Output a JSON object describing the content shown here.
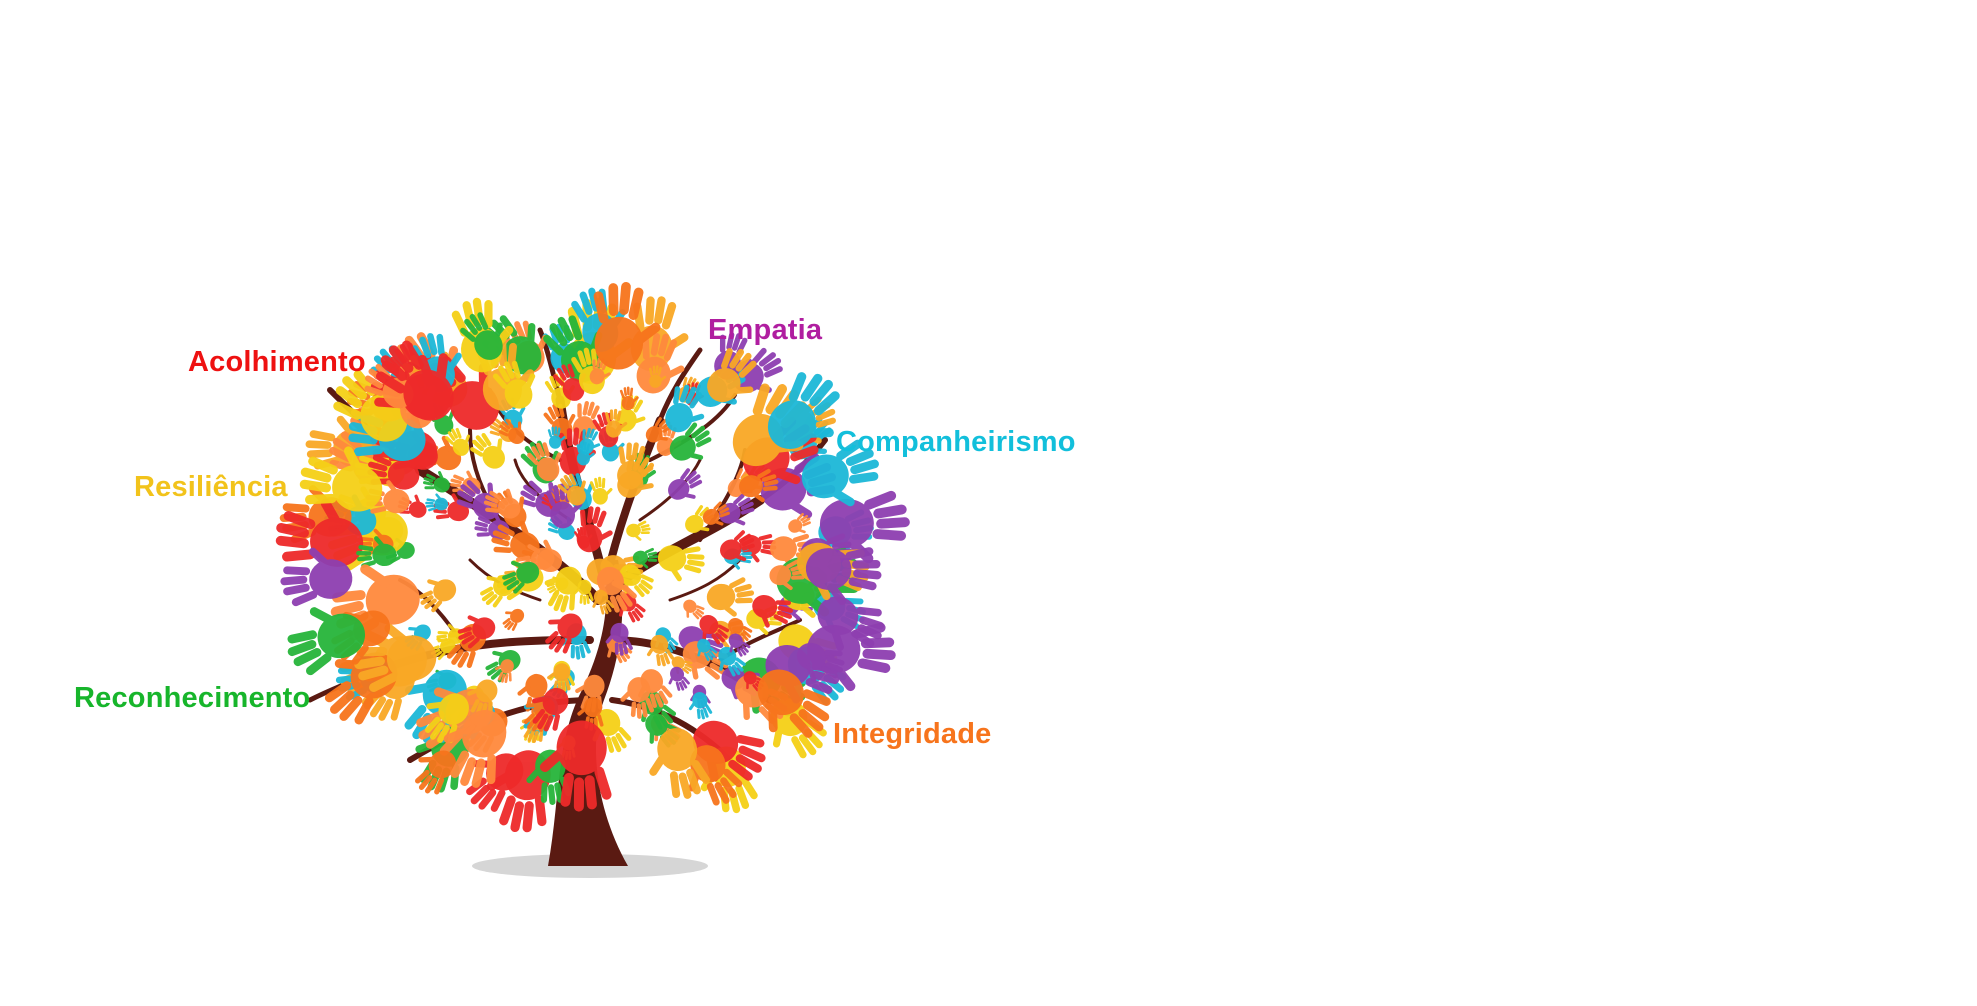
{
  "labels": [
    {
      "text": "Acolhimento",
      "color": "#ee1111"
    },
    {
      "text": "Empatia",
      "color": "#b01ea0"
    },
    {
      "text": "Companheirismo",
      "color": "#12bfdb"
    },
    {
      "text": "Resiliência",
      "color": "#f2c31b"
    },
    {
      "text": "Reconhecimento",
      "color": "#17b52b"
    },
    {
      "text": "Integridade",
      "color": "#f7741c"
    }
  ],
  "palette": {
    "trunk": "#5a1a12",
    "trunk_light": "#8a3a22",
    "shadow": "#d6d6d6",
    "hands": [
      "#ee2a2a",
      "#f7741c",
      "#f9a825",
      "#f5d017",
      "#27b53a",
      "#1cb8d8",
      "#8e3fb0",
      "#ff8a3d"
    ]
  },
  "icons": {
    "hand": "hand-icon",
    "tree": "tree-icon"
  }
}
